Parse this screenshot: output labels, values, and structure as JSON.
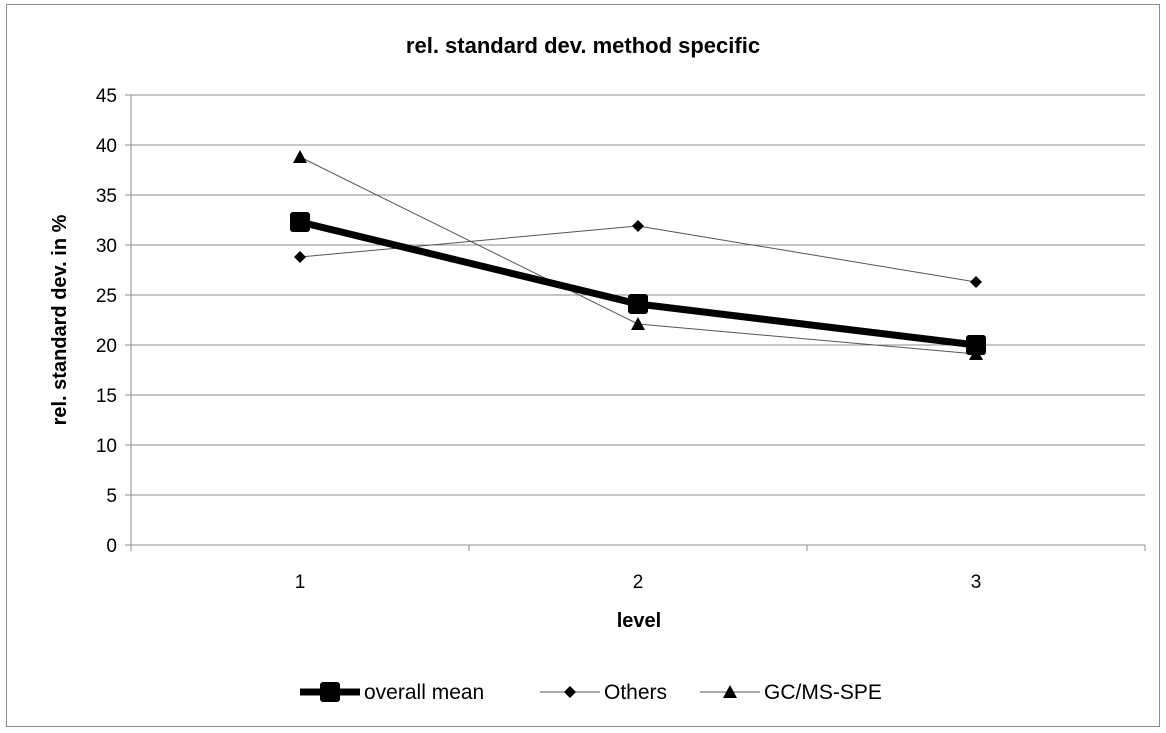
{
  "chart_data": {
    "type": "line",
    "title": "rel. standard dev. method specific",
    "xlabel": "level",
    "ylabel": "rel. standard dev. in %",
    "categories": [
      "1",
      "2",
      "3"
    ],
    "ylim": [
      0,
      45
    ],
    "yticks": [
      0,
      5,
      10,
      15,
      20,
      25,
      30,
      35,
      40,
      45
    ],
    "grid": true,
    "legend_position": "bottom",
    "series": [
      {
        "name": "overall mean",
        "values": [
          32.3,
          24.1,
          20.0
        ],
        "marker": "square",
        "line": "thick",
        "color": "#000000"
      },
      {
        "name": "Others",
        "values": [
          28.8,
          31.9,
          26.3
        ],
        "marker": "diamond",
        "line": "thin",
        "color": "#000000"
      },
      {
        "name": "GC/MS-SPE",
        "values": [
          38.8,
          22.1,
          19.1
        ],
        "marker": "triangle",
        "line": "thin",
        "color": "#000000"
      }
    ]
  }
}
